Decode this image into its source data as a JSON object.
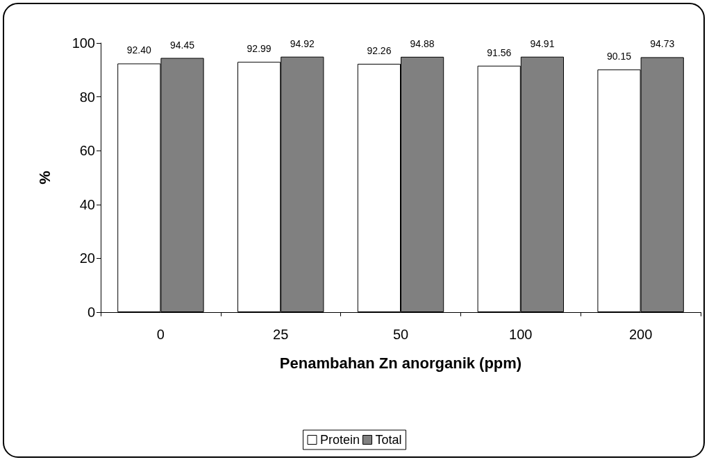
{
  "chart_data": {
    "type": "bar",
    "xlabel": "Penambahan Zn anorganik (ppm)",
    "ylabel": "%",
    "categories": [
      "0",
      "25",
      "50",
      "100",
      "200"
    ],
    "series": [
      {
        "name": "Protein",
        "color": "#ffffff",
        "values": [
          92.4,
          92.99,
          92.26,
          91.56,
          90.15
        ],
        "value_labels": [
          "92.40",
          "92.99",
          "92.26",
          "91.56",
          "90.15"
        ]
      },
      {
        "name": "Total",
        "color": "#808080",
        "values": [
          94.45,
          94.92,
          94.88,
          94.91,
          94.73
        ],
        "value_labels": [
          "94.45",
          "94.92",
          "94.88",
          "94.91",
          "94.73"
        ]
      }
    ],
    "ylim": [
      0,
      100
    ],
    "yticks": [
      0,
      20,
      40,
      60,
      80,
      100
    ],
    "grid": false,
    "legend": "bottom"
  }
}
